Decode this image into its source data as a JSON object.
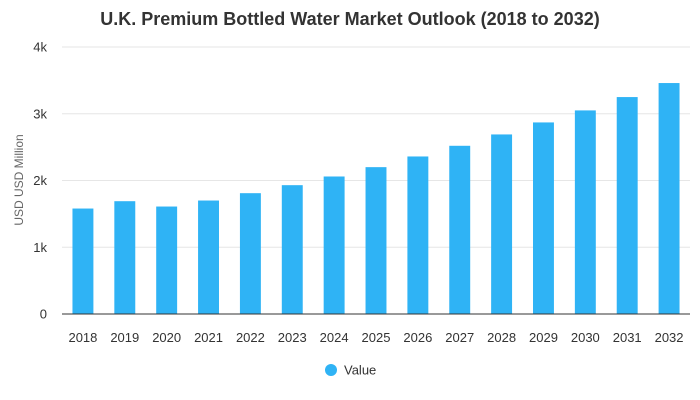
{
  "chart_data": {
    "type": "bar",
    "title": "U.K. Premium Bottled Water Market Outlook (2018 to 2032)",
    "xlabel": "",
    "ylabel": "USD USD Million",
    "categories": [
      "2018",
      "2019",
      "2020",
      "2021",
      "2022",
      "2023",
      "2024",
      "2025",
      "2026",
      "2027",
      "2028",
      "2029",
      "2030",
      "2031",
      "2032"
    ],
    "series": [
      {
        "name": "Value",
        "color": "#2fb3f5",
        "values": [
          1580,
          1690,
          1610,
          1700,
          1810,
          1930,
          2060,
          2200,
          2360,
          2520,
          2690,
          2870,
          3050,
          3250,
          3460
        ]
      }
    ],
    "ylim": [
      0,
      4000
    ],
    "yticks": [
      {
        "value": 0,
        "label": "0"
      },
      {
        "value": 1000,
        "label": "1k"
      },
      {
        "value": 2000,
        "label": "2k"
      },
      {
        "value": 3000,
        "label": "3k"
      },
      {
        "value": 4000,
        "label": "4k"
      }
    ],
    "grid": true,
    "legend_position": "bottom-center"
  }
}
